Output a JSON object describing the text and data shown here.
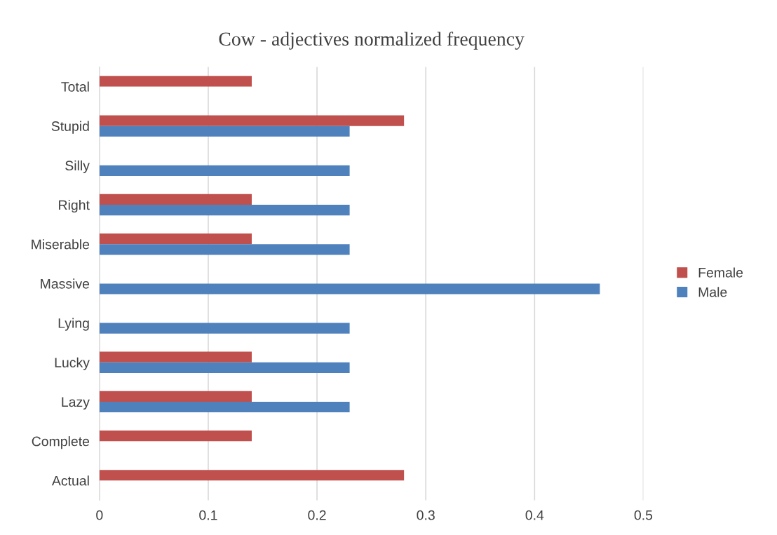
{
  "chart_data": {
    "type": "bar",
    "orientation": "horizontal",
    "title": "Cow - adjectives normalized frequency",
    "categories": [
      "Total",
      "Stupid",
      "Silly",
      "Right",
      "Miserable",
      "Massive",
      "Lying",
      "Lucky",
      "Lazy",
      "Complete",
      "Actual"
    ],
    "series": [
      {
        "name": "Female",
        "color": "#c0504d",
        "values": [
          0.14,
          0.28,
          null,
          0.14,
          0.14,
          null,
          null,
          0.14,
          0.14,
          0.14,
          0.28
        ]
      },
      {
        "name": "Male",
        "color": "#4f81bd",
        "values": [
          null,
          0.23,
          0.23,
          0.23,
          0.23,
          0.46,
          0.23,
          0.23,
          0.23,
          null,
          null
        ]
      }
    ],
    "xlim": [
      0,
      0.5
    ],
    "xticks": [
      0,
      0.1,
      0.2,
      0.3,
      0.4,
      0.5
    ],
    "grid": "x",
    "legend": "right"
  }
}
